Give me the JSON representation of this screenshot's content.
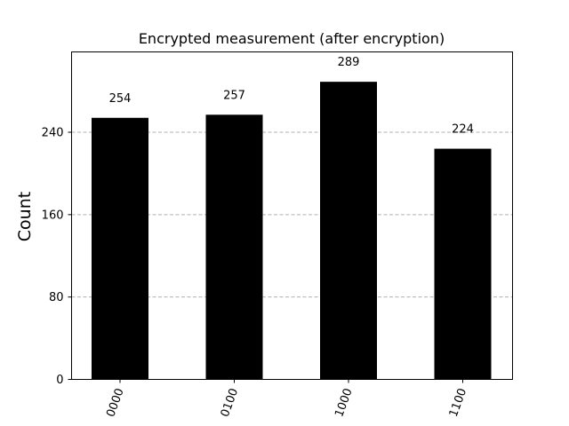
{
  "chart_data": {
    "type": "bar",
    "title": "Encrypted measurement (after encryption)",
    "xlabel": "",
    "ylabel": "Count",
    "categories": [
      "0000",
      "0100",
      "1000",
      "1100"
    ],
    "values": [
      254,
      257,
      289,
      224
    ],
    "data_labels": [
      "254",
      "257",
      "289",
      "224"
    ],
    "ylim": [
      0,
      318
    ],
    "yticks": [
      0,
      80,
      160,
      240
    ],
    "ytick_labels": [
      "0",
      "80",
      "160",
      "240"
    ],
    "grid": "y-dashed",
    "bar_color": "#000000",
    "grid_color": "#b0b0b0"
  }
}
